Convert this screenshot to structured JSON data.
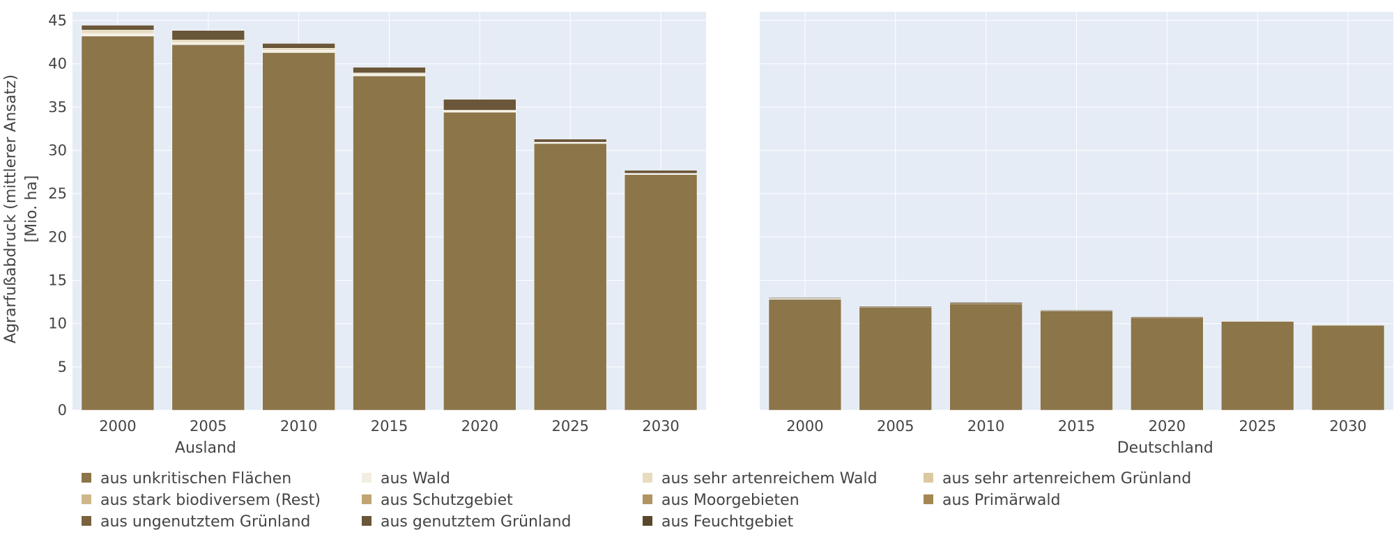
{
  "chart_data": {
    "type": "bar",
    "barmode": "stack",
    "ylabel_line1": "Agrarfußabdruck (mittlerer Ansatz)",
    "ylabel_line2": "[Mio. ha]",
    "ylim": [
      0,
      46
    ],
    "yticks": [
      0,
      5,
      10,
      15,
      20,
      25,
      30,
      35,
      40,
      45
    ],
    "categories": [
      "2000",
      "2005",
      "2010",
      "2015",
      "2020",
      "2025",
      "2030"
    ],
    "grid": true,
    "legend_position": "bottom",
    "panels": [
      {
        "xlabel": "Ausland",
        "series": [
          {
            "name": "aus unkritischen Flächen",
            "color": "#8b7549",
            "values": [
              43.2,
              42.2,
              41.3,
              38.6,
              34.4,
              30.8,
              27.2
            ]
          },
          {
            "name": "aus Wald",
            "color": "#f3eee1",
            "values": [
              0.3,
              0.25,
              0.25,
              0.2,
              0.15,
              0.1,
              0.1
            ]
          },
          {
            "name": "aus sehr artenreichem Wald",
            "color": "#e8dcbf",
            "values": [
              0.4,
              0.3,
              0.25,
              0.15,
              0.1,
              0.05,
              0.05
            ]
          },
          {
            "name": "aus sehr artenreichem Grünland",
            "color": "#ddc9a1",
            "values": [
              0,
              0,
              0,
              0,
              0,
              0,
              0
            ]
          },
          {
            "name": "aus stark biodiversem (Rest)",
            "color": "#cfb78b",
            "values": [
              0,
              0,
              0,
              0,
              0,
              0,
              0
            ]
          },
          {
            "name": "aus Schutzgebiet",
            "color": "#c1a575",
            "values": [
              0,
              0,
              0,
              0,
              0,
              0,
              0
            ]
          },
          {
            "name": "aus Moorgebieten",
            "color": "#b29462",
            "values": [
              0,
              0,
              0,
              0,
              0,
              0,
              0
            ]
          },
          {
            "name": "aus Primärwald",
            "color": "#a58752",
            "values": [
              0,
              0,
              0,
              0,
              0,
              0,
              0
            ]
          },
          {
            "name": "aus ungenutztem Grünland",
            "color": "#79633d",
            "values": [
              0,
              0,
              0,
              0,
              0,
              0,
              0
            ]
          },
          {
            "name": "aus genutztem Grünland",
            "color": "#6a5638",
            "values": [
              0.55,
              1.1,
              0.55,
              0.65,
              1.25,
              0.35,
              0.35
            ]
          },
          {
            "name": "aus Feuchtgebiet",
            "color": "#59472b",
            "values": [
              0,
              0,
              0,
              0,
              0,
              0,
              0
            ]
          }
        ]
      },
      {
        "xlabel": "Deutschland",
        "series": [
          {
            "name": "aus unkritischen Flächen",
            "color": "#8b7549",
            "values": [
              12.8,
              11.9,
              12.3,
              11.45,
              10.7,
              10.25,
              9.8
            ]
          },
          {
            "name": "aus Wald",
            "color": "#f3eee1",
            "values": [
              0.1,
              0,
              0,
              0,
              0,
              0,
              0
            ]
          },
          {
            "name": "aus sehr artenreichem Wald",
            "color": "#e8dcbf",
            "values": [
              0,
              0,
              0,
              0,
              0,
              0,
              0
            ]
          },
          {
            "name": "aus sehr artenreichem Grünland",
            "color": "#ddc9a1",
            "values": [
              0,
              0,
              0,
              0,
              0,
              0,
              0
            ]
          },
          {
            "name": "aus stark biodiversem (Rest)",
            "color": "#cfb78b",
            "values": [
              0,
              0,
              0,
              0,
              0,
              0,
              0
            ]
          },
          {
            "name": "aus Schutzgebiet",
            "color": "#c1a575",
            "values": [
              0,
              0,
              0,
              0,
              0,
              0,
              0
            ]
          },
          {
            "name": "aus Moorgebieten",
            "color": "#b29462",
            "values": [
              0,
              0,
              0,
              0,
              0,
              0,
              0
            ]
          },
          {
            "name": "aus Primärwald",
            "color": "#a58752",
            "values": [
              0,
              0,
              0,
              0,
              0,
              0,
              0
            ]
          },
          {
            "name": "aus ungenutztem Grünland",
            "color": "#79633d",
            "values": [
              0,
              0,
              0,
              0,
              0,
              0,
              0
            ]
          },
          {
            "name": "aus genutztem Grünland",
            "color": "#6a5638",
            "values": [
              0.1,
              0.1,
              0.15,
              0.1,
              0.1,
              0.05,
              0.05
            ]
          },
          {
            "name": "aus Feuchtgebiet",
            "color": "#59472b",
            "values": [
              0,
              0,
              0,
              0,
              0,
              0,
              0
            ]
          }
        ]
      }
    ]
  }
}
